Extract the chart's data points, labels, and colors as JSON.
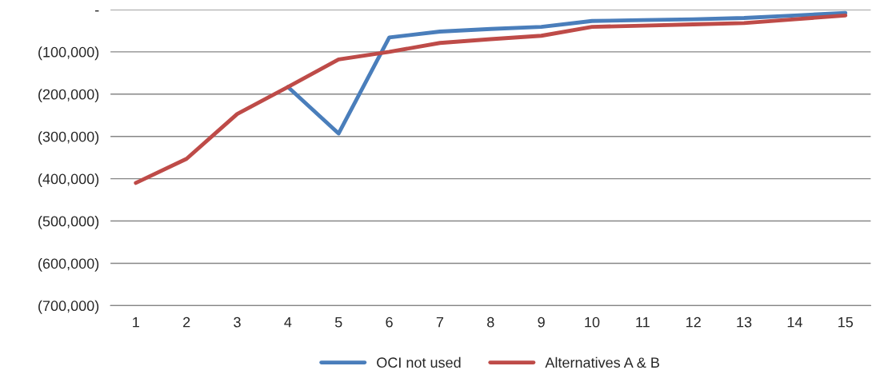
{
  "chart_data": {
    "type": "line",
    "categories": [
      "1",
      "2",
      "3",
      "4",
      "5",
      "6",
      "7",
      "8",
      "9",
      "10",
      "11",
      "12",
      "13",
      "14",
      "15"
    ],
    "series": [
      {
        "name": "OCI not used",
        "color": "#4a7ebb",
        "values": [
          null,
          null,
          null,
          -183000,
          -293000,
          -66000,
          -52000,
          -46000,
          -41000,
          -27000,
          -25000,
          -23000,
          -20000,
          -14000,
          -8000
        ]
      },
      {
        "name": "Alternatives A & B",
        "color": "#be4b48",
        "values": [
          -410000,
          -353000,
          -247000,
          -183000,
          -118000,
          -100000,
          -79000,
          -70000,
          -62000,
          -41000,
          -38000,
          -35000,
          -32000,
          -23000,
          -14000
        ]
      }
    ],
    "ylim": [
      -700000,
      0
    ],
    "yticks": [
      {
        "value": 0,
        "label": "-"
      },
      {
        "value": -100000,
        "label": "(100,000)"
      },
      {
        "value": -200000,
        "label": "(200,000)"
      },
      {
        "value": -300000,
        "label": "(300,000)"
      },
      {
        "value": -400000,
        "label": "(400,000)"
      },
      {
        "value": -500000,
        "label": "(500,000)"
      },
      {
        "value": -600000,
        "label": "(600,000)"
      },
      {
        "value": -700000,
        "label": "(700,000)"
      }
    ],
    "grid": "y",
    "legend": "bottom",
    "marker": "none",
    "line_style": "solid"
  }
}
